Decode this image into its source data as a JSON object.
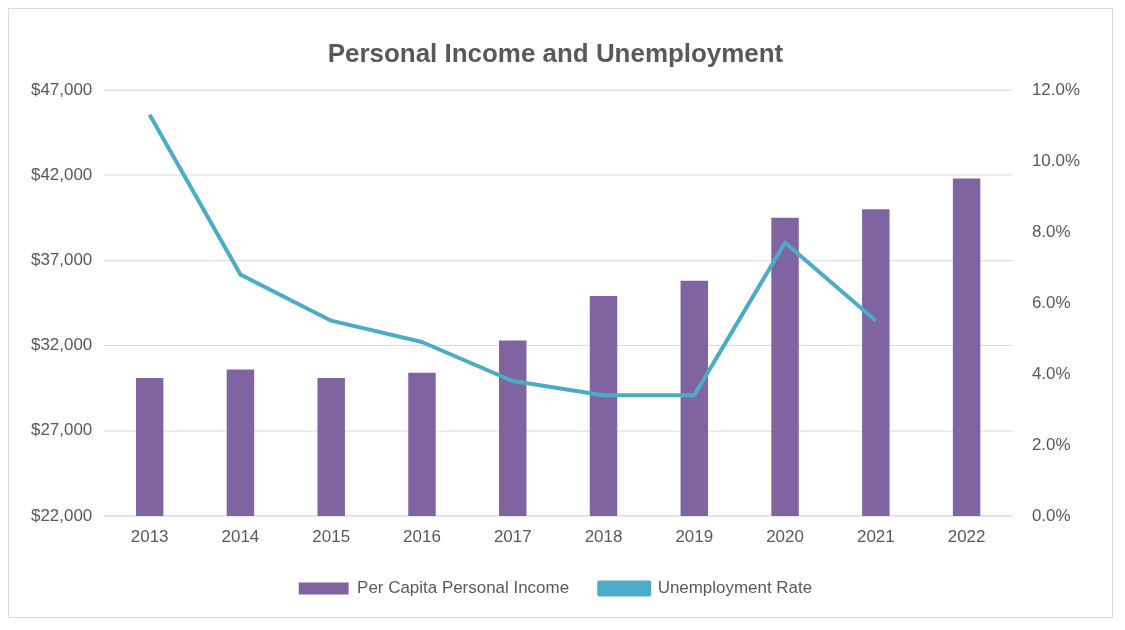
{
  "chart_data": {
    "type": "bar",
    "title": "Personal Income and Unemployment",
    "categories": [
      "2013",
      "2014",
      "2015",
      "2016",
      "2017",
      "2018",
      "2019",
      "2020",
      "2021",
      "2022"
    ],
    "series": [
      {
        "name": "Per Capita Personal Income",
        "color": "#8064a2",
        "values": [
          30100,
          30600,
          30100,
          30400,
          32300,
          34900,
          35800,
          39500,
          40000,
          41800
        ]
      },
      {
        "name": "Unemployment Rate",
        "type": "line",
        "axis": "y2",
        "color": "#4bacc6",
        "values": [
          11.3,
          6.8,
          5.5,
          4.9,
          3.8,
          3.4,
          3.4,
          7.7,
          5.5,
          null
        ],
        "marker": "none"
      }
    ],
    "ylim": [
      22000,
      47000
    ],
    "yticks": [
      {
        "value": 22000,
        "label": "$22,000"
      },
      {
        "value": 27000,
        "label": "$27,000"
      },
      {
        "value": 32000,
        "label": "$32,000"
      },
      {
        "value": 37000,
        "label": "$37,000"
      },
      {
        "value": 42000,
        "label": "$42,000"
      },
      {
        "value": 47000,
        "label": "$47,000"
      }
    ],
    "y2lim": [
      0,
      12
    ],
    "y2ticks": [
      {
        "value": 0,
        "label": "0.0%"
      },
      {
        "value": 2,
        "label": "2.0%"
      },
      {
        "value": 4,
        "label": "4.0%"
      },
      {
        "value": 6,
        "label": "6.0%"
      },
      {
        "value": 8,
        "label": "8.0%"
      },
      {
        "value": 10,
        "label": "10.0%"
      },
      {
        "value": 12,
        "label": "12.0%"
      }
    ],
    "grid": "y",
    "legend": "bottom"
  }
}
